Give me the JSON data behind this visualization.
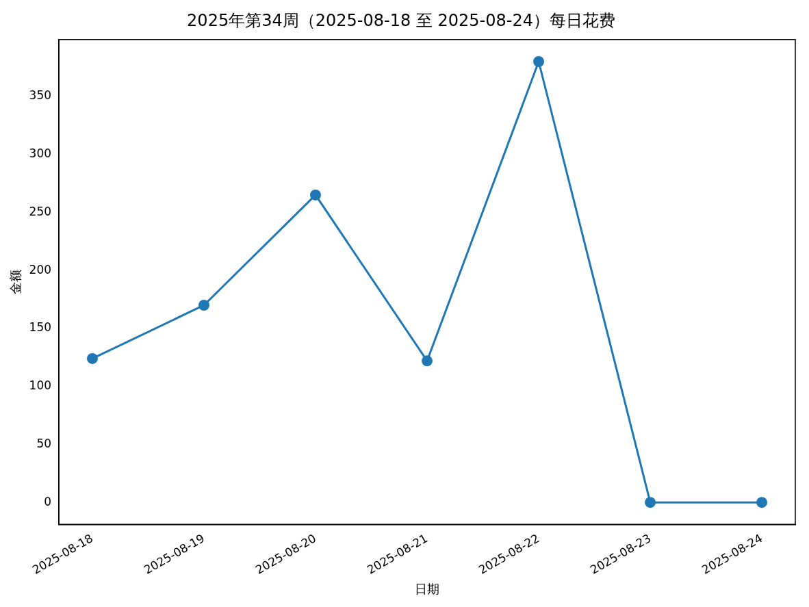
{
  "chart_data": {
    "type": "line",
    "title": "2025年第34周（2025-08-18 至 2025-08-24）每日花费",
    "xlabel": "日期",
    "ylabel": "金额",
    "categories": [
      "2025-08-18",
      "2025-08-19",
      "2025-08-20",
      "2025-08-21",
      "2025-08-22",
      "2025-08-23",
      "2025-08-24"
    ],
    "series": [
      {
        "color": "#1f77b4",
        "values": [
          124,
          170,
          265,
          122,
          380,
          0,
          0
        ]
      }
    ],
    "ylim": [
      -19,
      399
    ],
    "yticks": [
      0,
      50,
      100,
      150,
      200,
      250,
      300,
      350
    ],
    "grid": false,
    "legend": false,
    "marker": "circle",
    "line_style": "solid"
  }
}
